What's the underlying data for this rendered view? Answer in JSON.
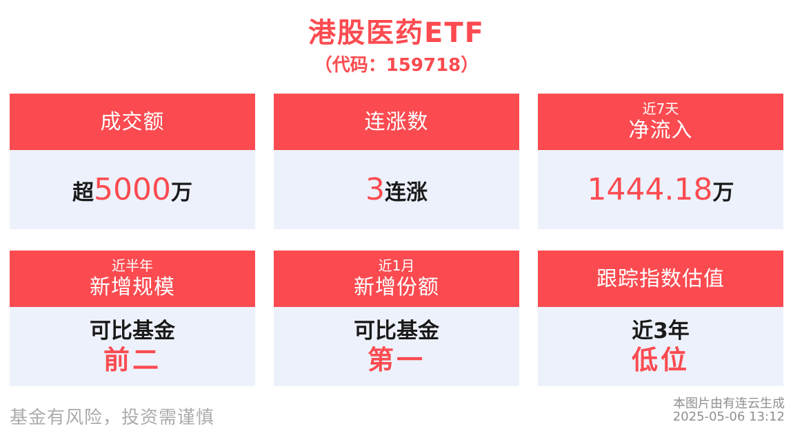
{
  "page": {
    "title": "港股医药ETF",
    "subtitle": "（代码：159718）",
    "disclaimer": "基金有风险，投资需谨慎",
    "watermark_line1": "本图片由有连云生成",
    "watermark_line2": "2025-05-06 13:12"
  },
  "colors": {
    "accent_red": "#fb4b50",
    "card_body_bg": "#edf1fb",
    "text_black": "#1a1a1a",
    "disclaimer_gray": "#ababab",
    "watermark_gray": "#8f8f8f"
  },
  "cards": [
    {
      "header_top": "",
      "header_main": "成交额",
      "value_prefix": "超",
      "value_highlight": "5000",
      "value_suffix": "万"
    },
    {
      "header_top": "",
      "header_main": "连涨数",
      "value_prefix": "",
      "value_highlight": "3",
      "value_suffix": "连涨"
    },
    {
      "header_top": "近7天",
      "header_main": "净流入",
      "value_prefix": "",
      "value_highlight": "1444.18",
      "value_suffix": "万"
    },
    {
      "header_top": "近半年",
      "header_main": "新增规模",
      "value_line1": "可比基金",
      "value_line2": "前二"
    },
    {
      "header_top": "近1月",
      "header_main": "新增份额",
      "value_line1": "可比基金",
      "value_line2": "第一"
    },
    {
      "header_top": "",
      "header_main": "跟踪指数估值",
      "value_line1": "近3年",
      "value_line2": "低位"
    }
  ]
}
